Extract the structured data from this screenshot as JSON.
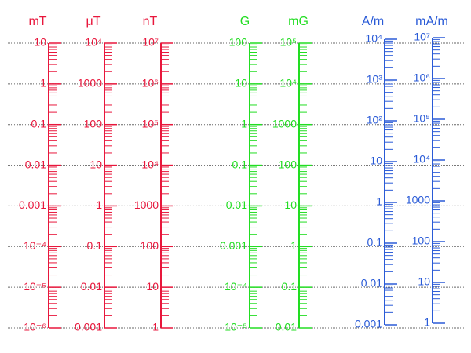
{
  "chart_data": [
    {
      "type": "log-scale",
      "title": "mT",
      "color": "#e8173c",
      "log": true,
      "grid": true,
      "ylim": [
        1e-06,
        10
      ],
      "yticks": [
        {
          "value": 1e-06,
          "label": "10⁻⁶"
        },
        {
          "value": 1e-05,
          "label": "10⁻⁵"
        },
        {
          "value": 0.0001,
          "label": "10⁻⁴"
        },
        0.001,
        0.01,
        0.1,
        1,
        10
      ]
    },
    {
      "type": "log-scale",
      "title": "μT",
      "color": "#e8173c",
      "log": true,
      "ylim": [
        0.001,
        10000
      ],
      "yticks": [
        0.001,
        0.01,
        0.1,
        1,
        10,
        100,
        1000,
        {
          "value": 10000,
          "label": "10⁴"
        }
      ]
    },
    {
      "type": "log-scale",
      "title": "nT",
      "color": "#e8173c",
      "log": true,
      "ylim": [
        1,
        10000000
      ],
      "yticks": [
        1,
        10,
        100,
        1000,
        {
          "value": 10000,
          "label": "10⁴"
        },
        {
          "value": 100000,
          "label": "10⁵"
        },
        {
          "value": 1000000,
          "label": "10⁶"
        },
        {
          "value": 10000000,
          "label": "10⁷"
        }
      ]
    },
    {
      "type": "log-scale",
      "title": "G",
      "color": "#22dd22",
      "log": true,
      "ylim": [
        1e-05,
        100
      ],
      "yticks": [
        {
          "value": 1e-05,
          "label": "10⁻⁵"
        },
        {
          "value": 0.0001,
          "label": "10⁻⁴"
        },
        0.001,
        0.01,
        0.1,
        1,
        10,
        100
      ]
    },
    {
      "type": "log-scale",
      "title": "mG",
      "color": "#22dd22",
      "log": true,
      "ylim": [
        0.01,
        100000
      ],
      "yticks": [
        0.01,
        0.1,
        1,
        10,
        100,
        1000,
        {
          "value": 10000,
          "label": "10⁴"
        },
        {
          "value": 100000,
          "label": "10⁵"
        }
      ]
    },
    {
      "type": "log-scale",
      "title": "A/m",
      "color": "#2a5bd7",
      "log": true,
      "ylim": [
        0.001,
        10000
      ],
      "yticks": [
        0.001,
        0.01,
        0.1,
        1,
        10,
        {
          "value": 100,
          "label": "10²"
        },
        {
          "value": 1000,
          "label": "10³"
        },
        {
          "value": 10000,
          "label": "10⁴"
        }
      ]
    },
    {
      "type": "log-scale",
      "title": "mA/m",
      "color": "#2a5bd7",
      "log": true,
      "ylim": [
        1,
        10000000
      ],
      "yticks": [
        1,
        10,
        100,
        1000,
        {
          "value": 10000,
          "label": "10⁴"
        },
        {
          "value": 100000,
          "label": "10⁵"
        },
        {
          "value": 1000000,
          "label": "10⁶"
        },
        {
          "value": 10000000,
          "label": "10⁷"
        }
      ]
    }
  ]
}
